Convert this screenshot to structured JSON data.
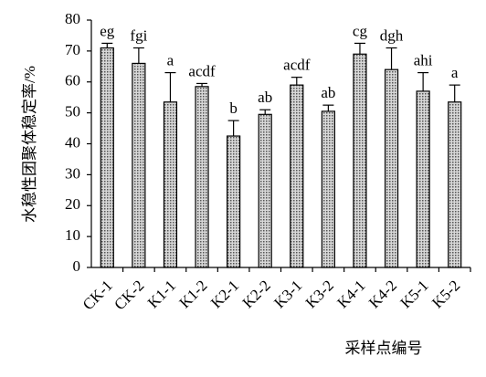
{
  "chart_data": {
    "type": "bar",
    "y_label": "水稳性团聚体稳定率/%",
    "x_label": "采样点编号",
    "categories": [
      "CK-1",
      "CK-2",
      "K1-1",
      "K1-2",
      "K2-1",
      "K2-2",
      "K3-1",
      "K3-2",
      "K4-1",
      "K4-2",
      "K5-1",
      "K5-2"
    ],
    "values": [
      71,
      66,
      53.5,
      58.5,
      42.5,
      49.5,
      59,
      50.5,
      69,
      64,
      57,
      53.5
    ],
    "errors": [
      1.5,
      5,
      9.5,
      1,
      5,
      1.5,
      2.5,
      2,
      3.5,
      7,
      6,
      5.5
    ],
    "significance": [
      "eg",
      "fgi",
      "a",
      "acdf",
      "b",
      "ab",
      "acdf",
      "ab",
      "cg",
      "dgh",
      "ahi",
      "a"
    ],
    "color": "#9a9a9a",
    "ylim": [
      0,
      80
    ],
    "yticks": [
      0,
      10,
      20,
      30,
      40,
      50,
      60,
      70,
      80
    ],
    "grid": false
  }
}
